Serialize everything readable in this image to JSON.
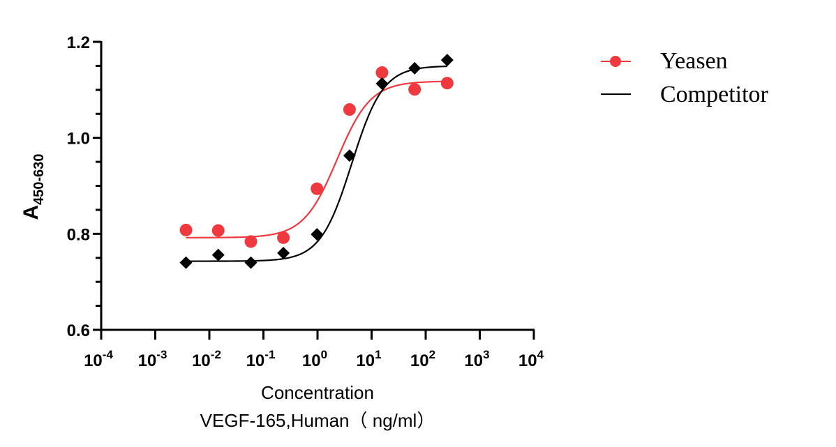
{
  "chart_data": {
    "type": "scatter",
    "title": "",
    "xlabel": "Concentration",
    "xlabel_line2": "VEGF-165,Human（ ng/ml）",
    "ylabel_main": "A",
    "ylabel_sub": "450-630",
    "xscale": "log",
    "xlim_exp": [
      -4,
      4
    ],
    "ylim": [
      0.6,
      1.2
    ],
    "yticks": [
      "0.6",
      "0.8",
      "1.0",
      "1.2"
    ],
    "yticks_values": [
      0.6,
      0.8,
      1.0,
      1.2
    ],
    "xticks_exp": [
      -4,
      -3,
      -2,
      -1,
      0,
      1,
      2,
      3,
      4
    ],
    "xticks_exp_labels": [
      "-4",
      "-3",
      "-2",
      "-1",
      "0",
      "1",
      "2",
      "3",
      "4"
    ],
    "grid": false,
    "legend_position": "top-right",
    "x": [
      0.0037,
      0.0146,
      0.0586,
      0.234,
      0.977,
      3.91,
      15.6,
      62.5,
      250
    ],
    "series": [
      {
        "name": "Yeasen",
        "color": "#F0393E",
        "marker": "circle",
        "values": [
          0.808,
          0.807,
          0.784,
          0.792,
          0.894,
          1.059,
          1.136,
          1.101,
          1.114
        ],
        "fit": {
          "bottom": 0.792,
          "top": 1.118,
          "ec50": 2.3,
          "hill": 1.4
        }
      },
      {
        "name": "Competitor",
        "color": "#000000",
        "marker": "diamond",
        "values": [
          0.74,
          0.756,
          0.74,
          0.76,
          0.799,
          0.963,
          1.113,
          1.145,
          1.162
        ],
        "fit": {
          "bottom": 0.743,
          "top": 1.15,
          "ec50": 4.3,
          "hill": 1.5
        }
      }
    ]
  }
}
